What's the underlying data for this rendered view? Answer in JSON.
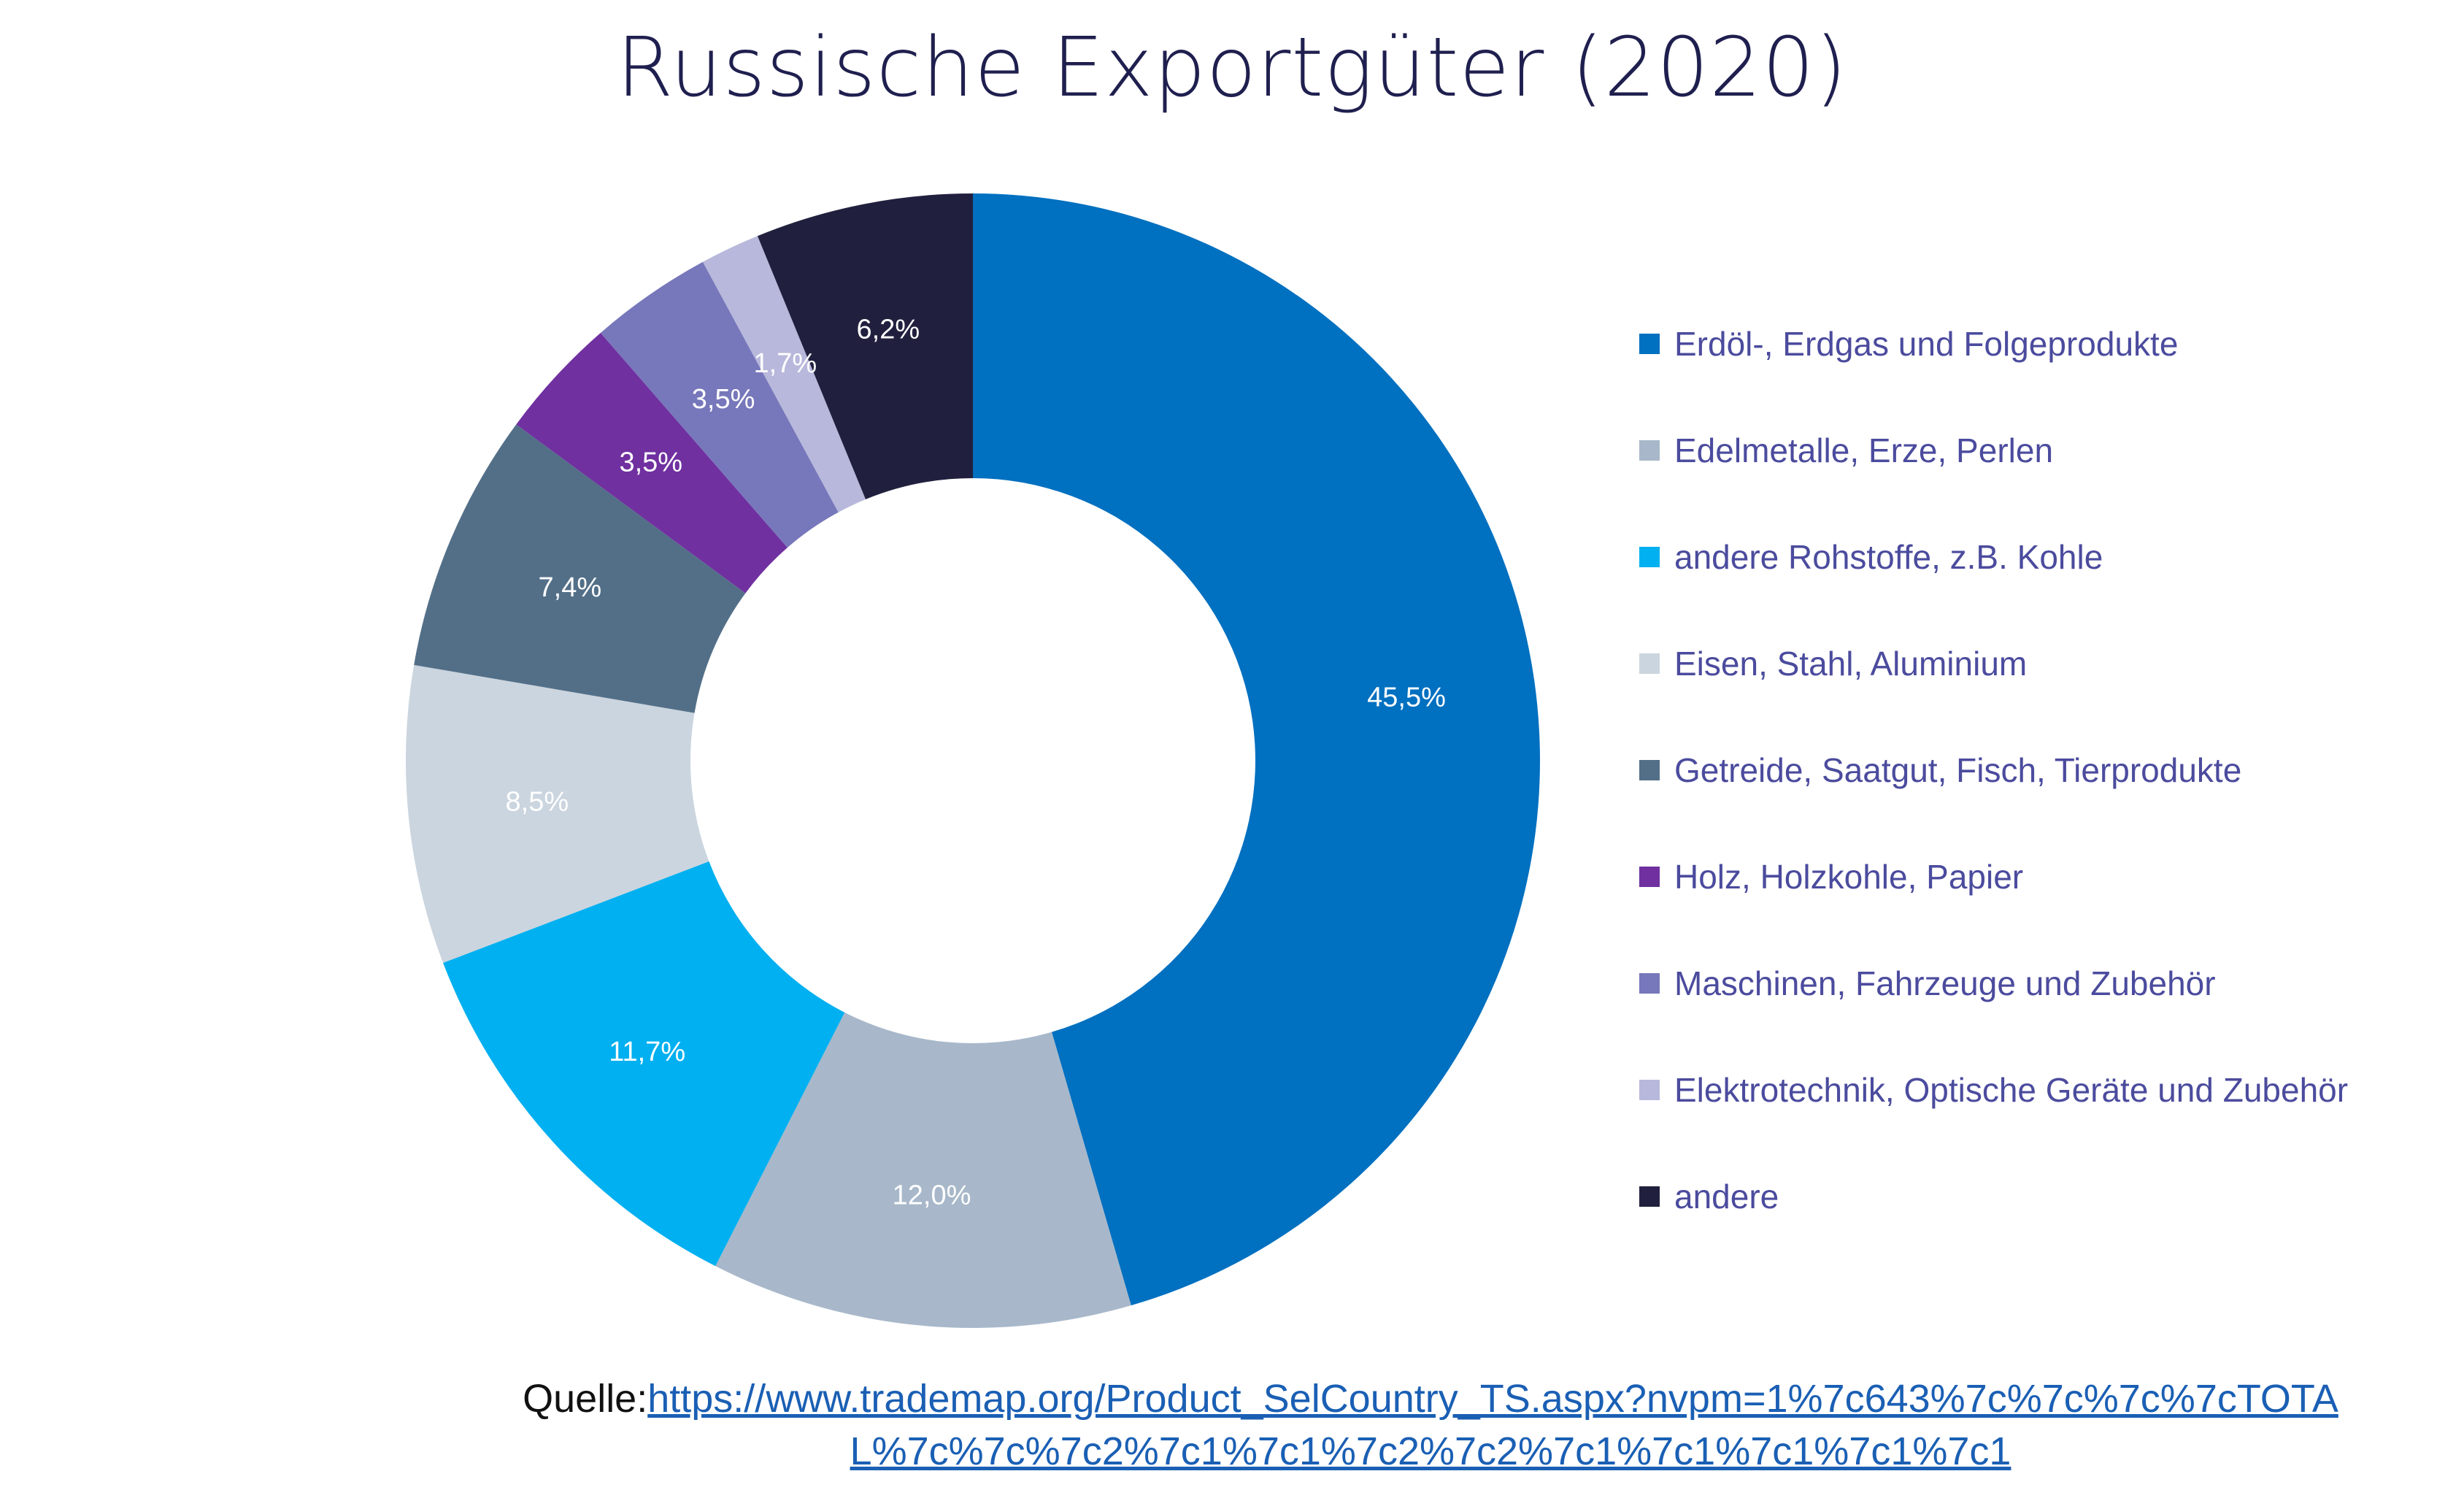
{
  "chart_data": {
    "type": "pie",
    "donut": true,
    "title": "Russische Exportgüter (2020)",
    "unit": "%",
    "slices": [
      {
        "name": "Erdöl-, Erdgas und Folgeprodukte",
        "value": 45.5,
        "label": "45,5%",
        "color": "#0070c0"
      },
      {
        "name": "Edelmetalle, Erze, Perlen",
        "value": 12.0,
        "label": "12,0%",
        "color": "#a8b8ca"
      },
      {
        "name": "andere Rohstoffe, z.B. Kohle",
        "value": 11.7,
        "label": "11,7%",
        "color": "#00b0f0"
      },
      {
        "name": "Eisen, Stahl, Aluminium",
        "value": 8.5,
        "label": "8,5%",
        "color": "#cbd5df"
      },
      {
        "name": "Getreide, Saatgut, Fisch, Tierprodukte",
        "value": 7.4,
        "label": "7,4%",
        "color": "#536f88"
      },
      {
        "name": "Holz, Holzkohle, Papier",
        "value": 3.5,
        "label": "3,5%",
        "color": "#7030a0"
      },
      {
        "name": "Maschinen, Fahrzeuge und Zubehör",
        "value": 3.5,
        "label": "3,5%",
        "color": "#7777bb"
      },
      {
        "name": "Elektrotechnik, Optische Geräte und Zubehör",
        "value": 1.7,
        "label": "1,7%",
        "color": "#b8b8dc"
      },
      {
        "name": "andere",
        "value": 6.2,
        "label": "6,2%",
        "color": "#20203e"
      }
    ],
    "legend_position": "right"
  },
  "source": {
    "prefix": "Quelle:",
    "link_line1": "https://www.trademap.org/Product_SelCountry_TS.aspx?nvpm=1%7c643%7c%7c%7c%7cTOTA",
    "link_line2": "L%7c%7c%7c2%7c1%7c1%7c2%7c2%7c1%7c1%7c1%7c1%7c1"
  }
}
